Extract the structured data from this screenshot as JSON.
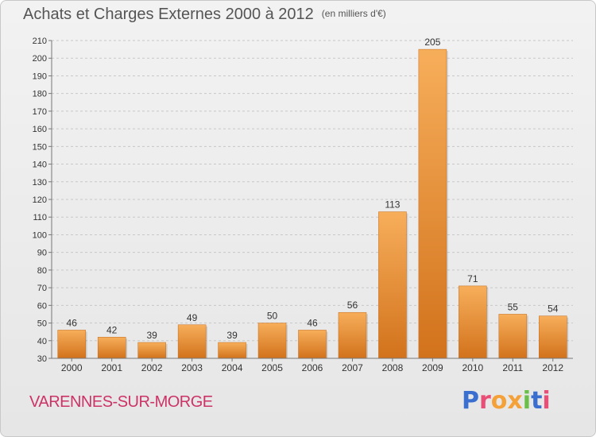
{
  "header": {
    "title": "Achats et Charges Externes 2000 à 2012",
    "unit": "(en milliers d'€)"
  },
  "footer": {
    "commune": "VARENNES-SUR-MORGE",
    "logo": {
      "text": "Proxiti",
      "letter_colors": [
        "#3a6fcf",
        "#e94e77",
        "#f4a13a",
        "#f4a13a",
        "#6abf4b",
        "#3a6fcf",
        "#e94e77"
      ]
    }
  },
  "colors": {
    "bar_light": "#f7ae5a",
    "bar_dark": "#d2721c",
    "grid": "#c8c8c8",
    "axis": "#777777",
    "text": "#333333"
  },
  "chart_data": {
    "type": "bar",
    "categories": [
      "2000",
      "2001",
      "2002",
      "2003",
      "2004",
      "2005",
      "2006",
      "2007",
      "2008",
      "2009",
      "2010",
      "2011",
      "2012"
    ],
    "values": [
      46,
      42,
      39,
      49,
      39,
      50,
      46,
      56,
      113,
      205,
      71,
      55,
      54
    ],
    "data_labels": [
      "46",
      "42",
      "39",
      "49",
      "39",
      "50",
      "46",
      "56",
      "113",
      "205",
      "71",
      "55",
      "54"
    ],
    "yticks": [
      30,
      40,
      50,
      60,
      70,
      80,
      90,
      100,
      110,
      120,
      130,
      140,
      150,
      160,
      170,
      180,
      190,
      200,
      210
    ],
    "ylim": [
      30,
      210
    ],
    "grid": true,
    "legend": "none"
  }
}
